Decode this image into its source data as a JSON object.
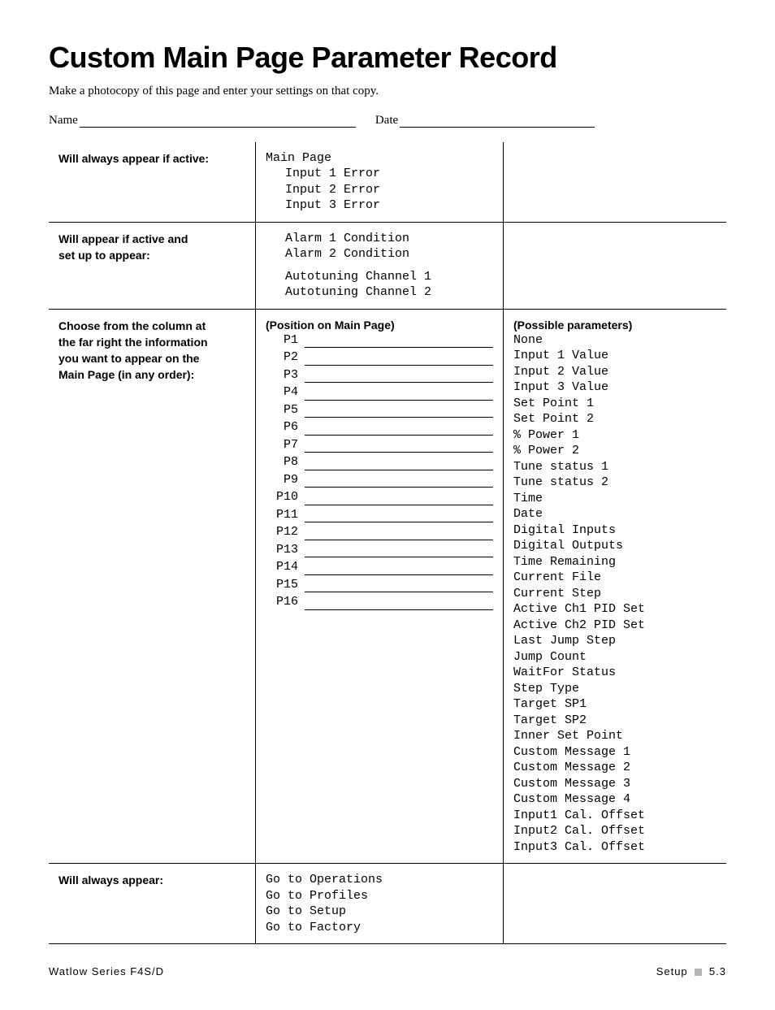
{
  "title": "Custom Main Page Parameter Record",
  "intro": "Make a photocopy of this page and enter your settings on that copy.",
  "fields": {
    "name_label": "Name",
    "date_label": "Date"
  },
  "row1": {
    "left": "Will always appear if active:",
    "mid": [
      "Main Page",
      "Input 1 Error",
      "Input 2 Error",
      "Input 3 Error"
    ]
  },
  "row2": {
    "left_l1": "Will appear if active and",
    "left_l2": "set up to appear:",
    "mid_a": [
      "Alarm 1 Condition",
      "Alarm 2 Condition"
    ],
    "mid_b": [
      "Autotuning Channel 1",
      "Autotuning Channel 2"
    ]
  },
  "row3": {
    "left_l1": "Choose from the column at",
    "left_l2": "the far right the information",
    "left_l3": "you want to appear on the",
    "left_l4": "Main Page (in any order):",
    "mid_heading": "(Position on Main Page)",
    "positions": [
      "P1",
      "P2",
      "P3",
      "P4",
      "P5",
      "P6",
      "P7",
      "P8",
      "P9",
      "P10",
      "P11",
      "P12",
      "P13",
      "P14",
      "P15",
      "P16"
    ],
    "right_heading": "(Possible parameters)",
    "parameters": [
      "None",
      "Input 1 Value",
      "Input 2 Value",
      "Input 3 Value",
      "Set Point 1",
      "Set Point 2",
      "% Power 1",
      "% Power 2",
      "Tune status 1",
      "Tune status 2",
      "Time",
      "Date",
      "Digital Inputs",
      "Digital Outputs",
      "Time Remaining",
      "Current File",
      "Current Step",
      "Active Ch1 PID Set",
      "Active Ch2 PID Set",
      "Last Jump Step",
      "Jump Count",
      "WaitFor Status",
      "Step Type",
      "Target SP1",
      "Target SP2",
      "Inner Set Point",
      "Custom Message 1",
      "Custom Message 2",
      "Custom Message 3",
      "Custom Message 4",
      "Input1 Cal. Offset",
      "Input2 Cal. Offset",
      "Input3 Cal. Offset"
    ]
  },
  "row4": {
    "left": "Will always appear:",
    "mid": [
      "Go to Operations",
      "Go to Profiles",
      "Go to Setup",
      "Go to Factory"
    ]
  },
  "footer": {
    "left": "Watlow Series F4S/D",
    "right_a": "Setup",
    "right_b": "5.3"
  }
}
